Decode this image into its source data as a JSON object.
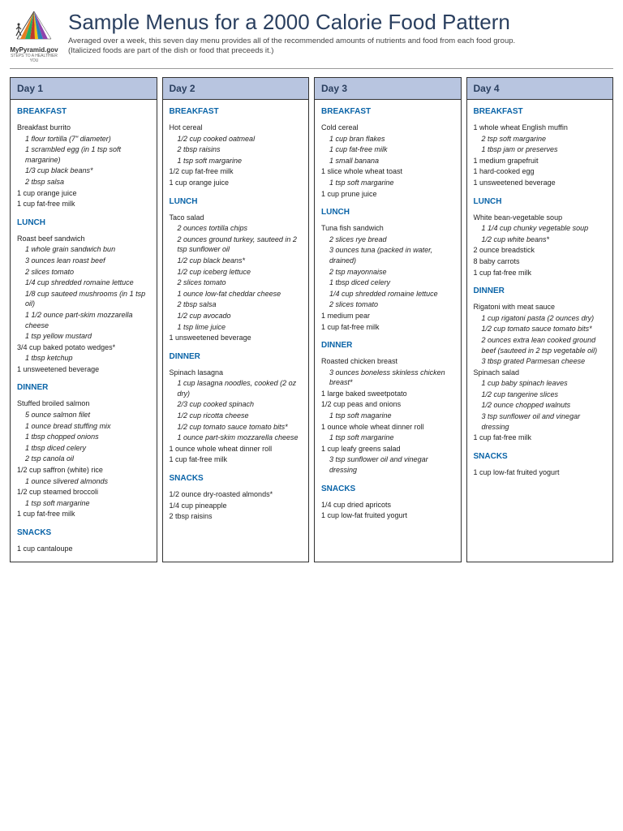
{
  "header": {
    "logo_text": "MyPyramid.gov",
    "logo_sub": "STEPS TO A HEALTHIER YOU",
    "title": "Sample Menus for a 2000 Calorie Food Pattern",
    "subtitle1": "Averaged over a week, this seven day menu provides all of the recommended amounts of nutrients and food from each food group.",
    "subtitle2": "(Italicized foods are part of the dish or food that preceeds it.)"
  },
  "colors": {
    "day_header_bg": "#b8c5e0",
    "meal_title": "#0a64a8",
    "title": "#2a3f5f"
  },
  "days": [
    {
      "label": "Day 1",
      "meals": [
        {
          "name": "BREAKFAST",
          "items": [
            {
              "t": "Breakfast burrito",
              "sub": false
            },
            {
              "t": "1 flour tortilla (7\" diameter)",
              "sub": true
            },
            {
              "t": "1 scrambled egg (in 1 tsp soft margarine)",
              "sub": true
            },
            {
              "t": "1/3 cup black beans*",
              "sub": true
            },
            {
              "t": "2 tbsp salsa",
              "sub": true
            },
            {
              "t": "1 cup orange juice",
              "sub": false
            },
            {
              "t": "1 cup fat-free milk",
              "sub": false
            }
          ]
        },
        {
          "name": "LUNCH",
          "items": [
            {
              "t": "Roast beef sandwich",
              "sub": false
            },
            {
              "t": "1 whole grain sandwich bun",
              "sub": true
            },
            {
              "t": "3 ounces lean roast beef",
              "sub": true
            },
            {
              "t": "2 slices tomato",
              "sub": true
            },
            {
              "t": "1/4 cup shredded romaine lettuce",
              "sub": true
            },
            {
              "t": "1/8 cup sauteed mushrooms (in 1 tsp oil)",
              "sub": true
            },
            {
              "t": "1 1/2 ounce part-skim mozzarella cheese",
              "sub": true
            },
            {
              "t": "1 tsp yellow mustard",
              "sub": true
            },
            {
              "t": "3/4 cup baked potato wedges*",
              "sub": false
            },
            {
              "t": "1 tbsp ketchup",
              "sub": true
            },
            {
              "t": "1 unsweetened beverage",
              "sub": false
            }
          ]
        },
        {
          "name": "DINNER",
          "items": [
            {
              "t": "Stuffed broiled salmon",
              "sub": false
            },
            {
              "t": "5 ounce salmon filet",
              "sub": true
            },
            {
              "t": "1 ounce bread stuffing mix",
              "sub": true
            },
            {
              "t": "1 tbsp chopped onions",
              "sub": true
            },
            {
              "t": "1 tbsp diced celery",
              "sub": true
            },
            {
              "t": "2 tsp canola oil",
              "sub": true
            },
            {
              "t": "1/2 cup saffron (white) rice",
              "sub": false
            },
            {
              "t": "1 ounce slivered almonds",
              "sub": true
            },
            {
              "t": "1/2 cup steamed broccoli",
              "sub": false
            },
            {
              "t": "1 tsp soft margarine",
              "sub": true
            },
            {
              "t": "1 cup fat-free milk",
              "sub": false
            }
          ]
        },
        {
          "name": "SNACKS",
          "items": [
            {
              "t": "1 cup cantaloupe",
              "sub": false
            }
          ]
        }
      ]
    },
    {
      "label": "Day 2",
      "meals": [
        {
          "name": "BREAKFAST",
          "items": [
            {
              "t": "Hot cereal",
              "sub": false
            },
            {
              "t": "1/2 cup cooked oatmeal",
              "sub": true
            },
            {
              "t": "2 tbsp raisins",
              "sub": true
            },
            {
              "t": "1 tsp soft margarine",
              "sub": true
            },
            {
              "t": "1/2 cup fat-free milk",
              "sub": false
            },
            {
              "t": "1 cup orange juice",
              "sub": false
            }
          ]
        },
        {
          "name": "LUNCH",
          "items": [
            {
              "t": "Taco salad",
              "sub": false
            },
            {
              "t": "2 ounces tortilla chips",
              "sub": true
            },
            {
              "t": "2 ounces ground turkey, sauteed in 2 tsp sunflower oil",
              "sub": true
            },
            {
              "t": "1/2 cup black beans*",
              "sub": true
            },
            {
              "t": "1/2 cup iceberg lettuce",
              "sub": true
            },
            {
              "t": "2 slices tomato",
              "sub": true
            },
            {
              "t": "1 ounce low-fat cheddar cheese",
              "sub": true
            },
            {
              "t": "2 tbsp salsa",
              "sub": true
            },
            {
              "t": "1/2 cup avocado",
              "sub": true
            },
            {
              "t": "1 tsp lime juice",
              "sub": true
            },
            {
              "t": "1 unsweetened beverage",
              "sub": false
            }
          ]
        },
        {
          "name": "DINNER",
          "items": [
            {
              "t": "Spinach lasagna",
              "sub": false
            },
            {
              "t": "1 cup lasagna noodles, cooked (2 oz dry)",
              "sub": true
            },
            {
              "t": "2/3 cup cooked spinach",
              "sub": true
            },
            {
              "t": "1/2 cup ricotta cheese",
              "sub": true
            },
            {
              "t": "1/2 cup tomato sauce tomato bits*",
              "sub": true
            },
            {
              "t": "1 ounce part-skim mozzarella cheese",
              "sub": true
            },
            {
              "t": "1 ounce whole wheat dinner roll",
              "sub": false
            },
            {
              "t": "1 cup fat-free milk",
              "sub": false
            }
          ]
        },
        {
          "name": "SNACKS",
          "items": [
            {
              "t": "1/2 ounce dry-roasted almonds*",
              "sub": false
            },
            {
              "t": "1/4 cup pineapple",
              "sub": false
            },
            {
              "t": "2 tbsp raisins",
              "sub": false
            }
          ]
        }
      ]
    },
    {
      "label": "Day 3",
      "meals": [
        {
          "name": "BREAKFAST",
          "items": [
            {
              "t": "Cold cereal",
              "sub": false
            },
            {
              "t": "1 cup bran flakes",
              "sub": true
            },
            {
              "t": "1 cup fat-free milk",
              "sub": true
            },
            {
              "t": "1 small banana",
              "sub": true
            },
            {
              "t": "1 slice whole wheat toast",
              "sub": false
            },
            {
              "t": "1 tsp soft margarine",
              "sub": true
            },
            {
              "t": "1 cup prune juice",
              "sub": false
            }
          ]
        },
        {
          "name": "LUNCH",
          "items": [
            {
              "t": "Tuna fish sandwich",
              "sub": false
            },
            {
              "t": "2 slices rye bread",
              "sub": true
            },
            {
              "t": "3 ounces tuna (packed in water, drained)",
              "sub": true
            },
            {
              "t": "2 tsp mayonnaise",
              "sub": true
            },
            {
              "t": "1 tbsp diced celery",
              "sub": true
            },
            {
              "t": "1/4 cup shredded romaine lettuce",
              "sub": true
            },
            {
              "t": "2 slices tomato",
              "sub": true
            },
            {
              "t": "1 medium pear",
              "sub": false
            },
            {
              "t": "1 cup fat-free milk",
              "sub": false
            }
          ]
        },
        {
          "name": "DINNER",
          "items": [
            {
              "t": "Roasted chicken breast",
              "sub": false
            },
            {
              "t": "3 ounces boneless skinless chicken breast*",
              "sub": true
            },
            {
              "t": "1 large baked sweetpotato",
              "sub": false
            },
            {
              "t": "1/2 cup peas and onions",
              "sub": false
            },
            {
              "t": "1 tsp soft magarine",
              "sub": true
            },
            {
              "t": "1 ounce whole wheat dinner roll",
              "sub": false
            },
            {
              "t": "1 tsp soft margarine",
              "sub": true
            },
            {
              "t": "1 cup leafy greens salad",
              "sub": false
            },
            {
              "t": "3 tsp sunflower oil and vinegar dressing",
              "sub": true
            }
          ]
        },
        {
          "name": "SNACKS",
          "items": [
            {
              "t": "1/4 cup dried apricots",
              "sub": false
            },
            {
              "t": "1 cup low-fat fruited yogurt",
              "sub": false
            }
          ]
        }
      ]
    },
    {
      "label": "Day 4",
      "meals": [
        {
          "name": "BREAKFAST",
          "items": [
            {
              "t": "1 whole wheat English muffin",
              "sub": false
            },
            {
              "t": "2 tsp soft margarine",
              "sub": true
            },
            {
              "t": "1 tbsp jam or preserves",
              "sub": true
            },
            {
              "t": "1 medium grapefruit",
              "sub": false
            },
            {
              "t": "1 hard-cooked egg",
              "sub": false
            },
            {
              "t": "1 unsweetened beverage",
              "sub": false
            }
          ]
        },
        {
          "name": "LUNCH",
          "items": [
            {
              "t": "White bean-vegetable soup",
              "sub": false
            },
            {
              "t": "1 1/4 cup chunky vegetable soup",
              "sub": true
            },
            {
              "t": "1/2 cup white beans*",
              "sub": true
            },
            {
              "t": "2 ounce breadstick",
              "sub": false
            },
            {
              "t": "8 baby carrots",
              "sub": false
            },
            {
              "t": "1 cup fat-free milk",
              "sub": false
            }
          ]
        },
        {
          "name": "DINNER",
          "items": [
            {
              "t": "Rigatoni with meat sauce",
              "sub": false
            },
            {
              "t": "1 cup rigatoni pasta (2 ounces dry)",
              "sub": true
            },
            {
              "t": "1/2 cup tomato sauce tomato bits*",
              "sub": true
            },
            {
              "t": "2 ounces extra lean cooked ground beef (sauteed in 2 tsp vegetable oil)",
              "sub": true
            },
            {
              "t": "3 tbsp grated Parmesan cheese",
              "sub": true
            },
            {
              "t": "Spinach salad",
              "sub": false
            },
            {
              "t": "1 cup baby spinach leaves",
              "sub": true
            },
            {
              "t": "1/2 cup tangerine slices",
              "sub": true
            },
            {
              "t": "1/2 ounce chopped walnuts",
              "sub": true
            },
            {
              "t": "3 tsp sunflower oil and vinegar dressing",
              "sub": true
            },
            {
              "t": "1 cup fat-free milk",
              "sub": false
            }
          ]
        },
        {
          "name": "SNACKS",
          "items": [
            {
              "t": "1 cup low-fat fruited yogurt",
              "sub": false
            }
          ]
        }
      ]
    }
  ]
}
